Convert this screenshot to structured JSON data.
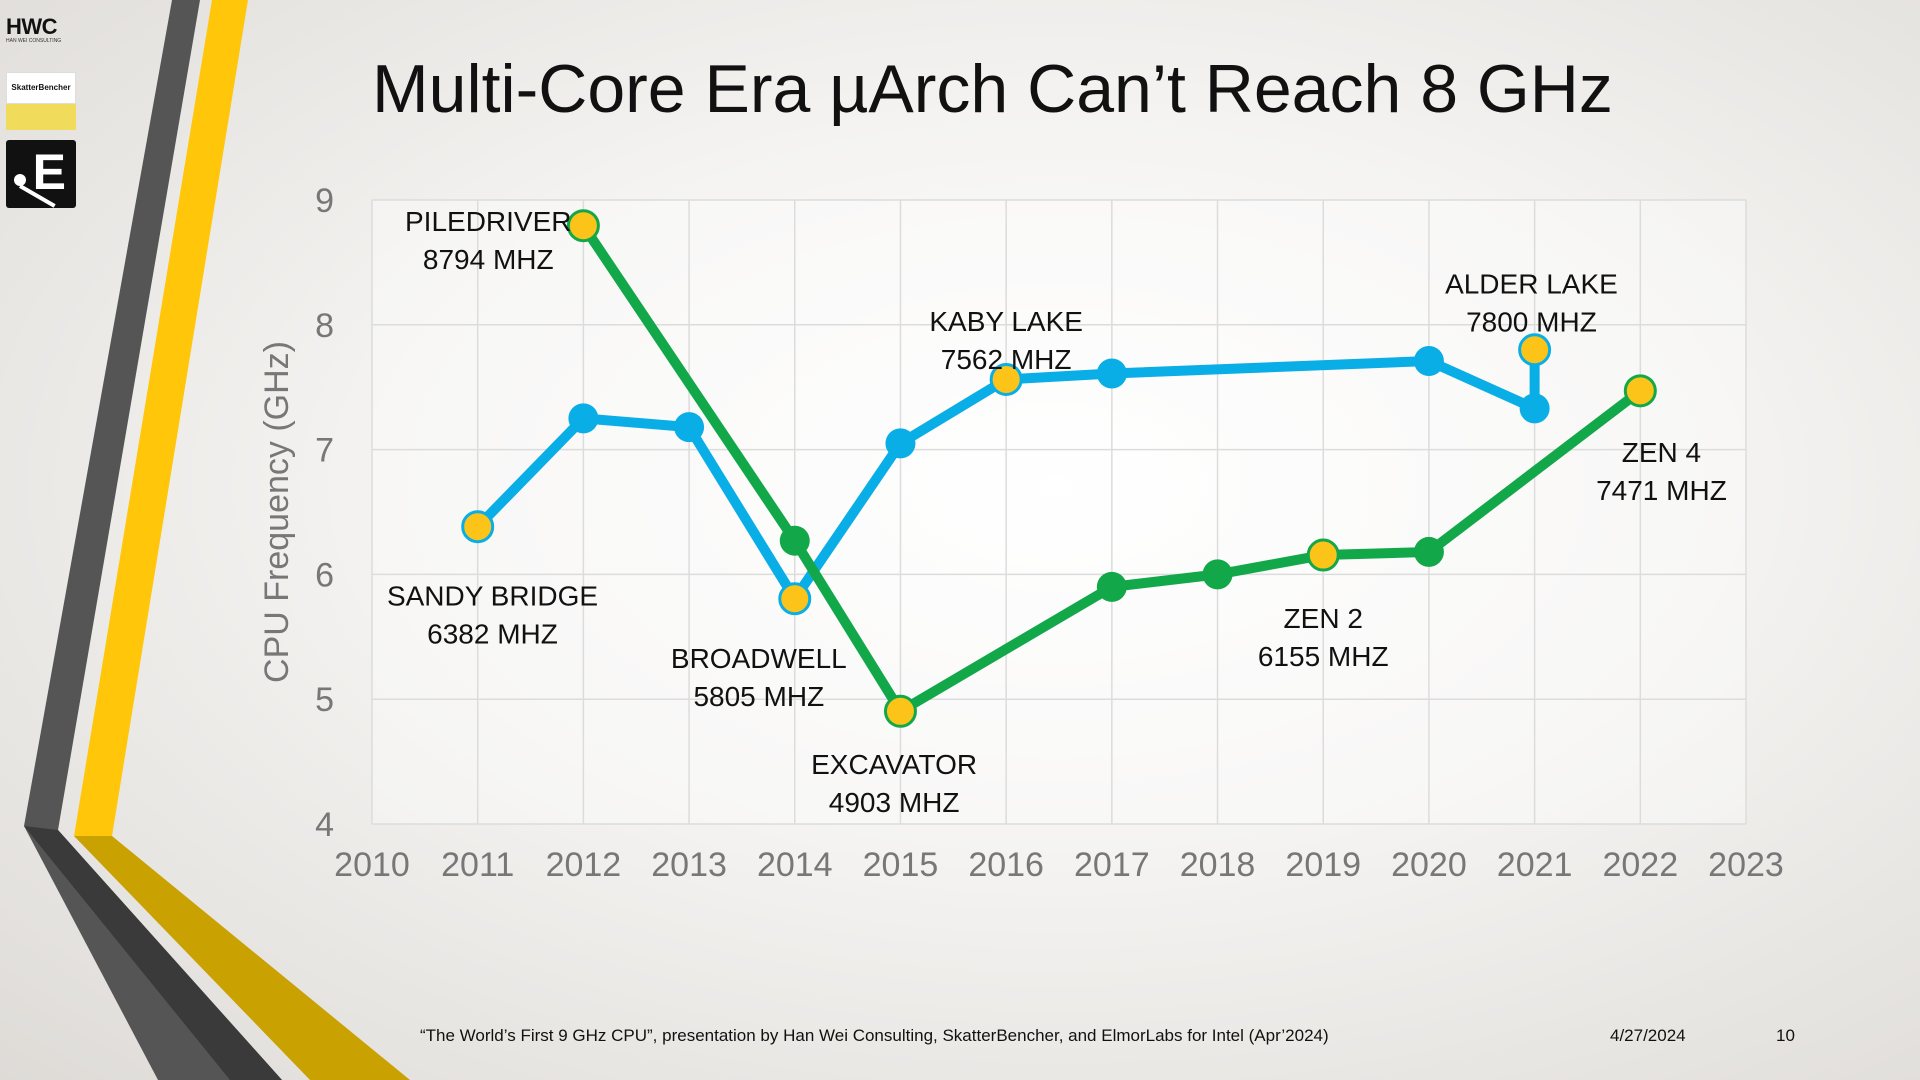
{
  "slide": {
    "title": "Multi-Core Era µArch Can’t Reach 8 GHz",
    "footer_source": "“The World’s First 9 GHz CPU”, presentation by Han Wei Consulting, SkatterBencher, and ElmorLabs for Intel (Apr’2024)",
    "footer_date": "4/27/2024",
    "page_number": "10"
  },
  "logos": {
    "hwc_text": "HWC",
    "hwc_subtitle": "HAN WEI CONSULTING",
    "skatterbencher_text": "SkatterBencher",
    "elmor_text": "E"
  },
  "colors": {
    "intel_series": "#0aaee6",
    "amd_series": "#12a84a",
    "highlight_marker": "#fcc419",
    "accent_yellow": "#ffc60a",
    "accent_gold": "#c9a100",
    "accent_gray": "#555555"
  },
  "chart_data": {
    "type": "line",
    "ylabel": "CPU Frequency (GHz)",
    "xlim": [
      2010,
      2023
    ],
    "ylim": [
      4,
      9
    ],
    "x_ticks": [
      "2010",
      "2011",
      "2012",
      "2013",
      "2014",
      "2015",
      "2016",
      "2017",
      "2018",
      "2019",
      "2020",
      "2021",
      "2022",
      "2023"
    ],
    "y_ticks": [
      "4",
      "5",
      "6",
      "7",
      "8",
      "9"
    ],
    "grid": true,
    "series": [
      {
        "color_key": "intel_series",
        "points": [
          {
            "x": 2011,
            "y": 6.382,
            "highlight": true
          },
          {
            "x": 2012,
            "y": 7.25
          },
          {
            "x": 2013,
            "y": 7.18
          },
          {
            "x": 2014,
            "y": 5.805,
            "highlight": true
          },
          {
            "x": 2015,
            "y": 7.05
          },
          {
            "x": 2016,
            "y": 7.562,
            "highlight": true
          },
          {
            "x": 2017,
            "y": 7.61
          },
          {
            "x": 2020,
            "y": 7.71
          },
          {
            "x": 2021,
            "y": 7.33
          },
          {
            "x": 2021,
            "y": 7.8,
            "highlight": true
          }
        ]
      },
      {
        "color_key": "amd_series",
        "points": [
          {
            "x": 2012,
            "y": 8.794,
            "highlight": true
          },
          {
            "x": 2014,
            "y": 6.27
          },
          {
            "x": 2015,
            "y": 4.903,
            "highlight": true
          },
          {
            "x": 2017,
            "y": 5.9
          },
          {
            "x": 2018,
            "y": 6.0
          },
          {
            "x": 2019,
            "y": 6.155,
            "highlight": true
          },
          {
            "x": 2020,
            "y": 6.18
          },
          {
            "x": 2022,
            "y": 7.471,
            "highlight": true
          }
        ]
      }
    ],
    "annotations": [
      {
        "name": "piledriver",
        "lines": [
          "PILEDRIVER",
          "8794 MHZ"
        ],
        "x": 2011.1,
        "y": 8.75
      },
      {
        "name": "sandy-bridge",
        "lines": [
          "SANDY BRIDGE",
          "6382 MHZ"
        ],
        "x": 2011.14,
        "y": 5.75
      },
      {
        "name": "broadwell",
        "lines": [
          "BROADWELL",
          "5805 MHZ"
        ],
        "x": 2013.66,
        "y": 5.25
      },
      {
        "name": "excavator",
        "lines": [
          "EXCAVATOR",
          "4903 MHZ"
        ],
        "x": 2014.94,
        "y": 4.4
      },
      {
        "name": "kaby-lake",
        "lines": [
          "KABY LAKE",
          "7562 MHZ"
        ],
        "x": 2016.0,
        "y": 7.95
      },
      {
        "name": "alder-lake",
        "lines": [
          "ALDER LAKE",
          "7800 MHZ"
        ],
        "x": 2020.97,
        "y": 8.25
      },
      {
        "name": "zen-2",
        "lines": [
          "ZEN 2",
          "6155 MHZ"
        ],
        "x": 2019.0,
        "y": 5.57
      },
      {
        "name": "zen-4",
        "lines": [
          "ZEN 4",
          "7471 MHZ"
        ],
        "x": 2022.2,
        "y": 6.9
      }
    ]
  }
}
